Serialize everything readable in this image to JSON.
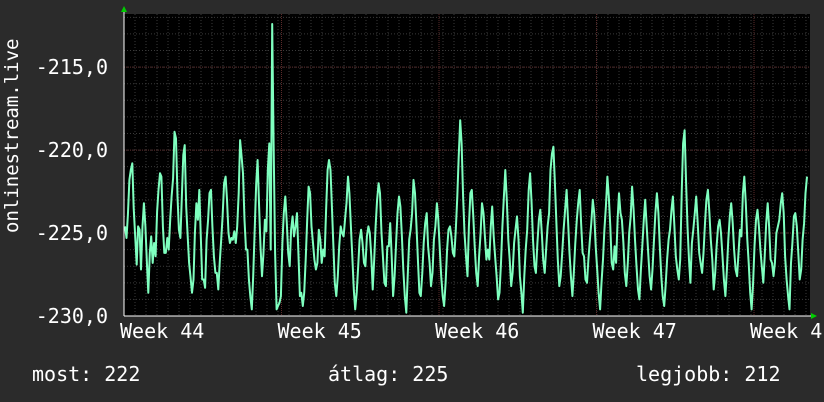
{
  "chart_data": {
    "type": "line",
    "ylabel": "onlinestream.live",
    "ylim": [
      -230,
      -211.8
    ],
    "yticks": [
      -215,
      -220,
      -225,
      -230
    ],
    "ytick_labels": [
      "-215,0",
      "-220,0",
      "-225,0",
      "-230,0"
    ],
    "xticks": [
      "Week 44",
      "Week 45",
      "Week 46",
      "Week 47",
      "Week 4"
    ],
    "grid": true,
    "colors": {
      "background": "#000000",
      "line": "#7fffbf",
      "grid_major": "#5a2a2a",
      "grid_minor": "#3a3a3a",
      "axis": "#ffffff",
      "arrow": "#00cc00"
    },
    "series": [
      {
        "values": [
          -224.6,
          -225.3,
          -223.9,
          -221.8,
          -221.2,
          -220.8,
          -223.5,
          -225.2,
          -226.9,
          -224.6,
          -224.8,
          -227.2,
          -224.6,
          -223.2,
          -224.6,
          -226.8,
          -228.6,
          -226.2,
          -225.2,
          -226.8,
          -225.6,
          -226.4,
          -223.7,
          -222.4,
          -221.4,
          -221.6,
          -224.6,
          -226.2,
          -226.2,
          -225.3,
          -226.0,
          -224.2,
          -222.8,
          -221.7,
          -218.9,
          -219.3,
          -222.8,
          -224.8,
          -225.3,
          -222.9,
          -220.3,
          -219.7,
          -223.4,
          -225.2,
          -226.8,
          -227.7,
          -228.6,
          -227.8,
          -225.0,
          -223.2,
          -224.2,
          -222.4,
          -225.2,
          -227.8,
          -227.8,
          -228.3,
          -225.4,
          -224.2,
          -222.6,
          -222.4,
          -224.6,
          -226.4,
          -227.4,
          -227.4,
          -228.4,
          -226.8,
          -225.4,
          -224.0,
          -222.0,
          -221.6,
          -223.0,
          -225.0,
          -225.6,
          -225.3,
          -225.4,
          -224.9,
          -225.6,
          -224.6,
          -222.6,
          -219.4,
          -220.4,
          -221.4,
          -224.2,
          -226.0,
          -226.0,
          -227.8,
          -228.8,
          -229.6,
          -227.6,
          -224.8,
          -222.0,
          -220.6,
          -223.4,
          -225.8,
          -227.6,
          -226.3,
          -224.2,
          -224.9,
          -221.2,
          -219.6,
          -226.0,
          -212.4,
          -219.6,
          -226.2,
          -229.6,
          -229.4,
          -229.2,
          -228.8,
          -225.6,
          -223.8,
          -222.8,
          -224.4,
          -226.2,
          -227.0,
          -224.8,
          -224.0,
          -225.2,
          -224.6,
          -223.8,
          -226.2,
          -228.8,
          -228.6,
          -229.4,
          -228.6,
          -226.6,
          -224.2,
          -222.2,
          -222.6,
          -224.6,
          -225.6,
          -226.6,
          -227.2,
          -226.8,
          -224.8,
          -225.4,
          -226.8,
          -226.0,
          -226.4,
          -223.6,
          -221.2,
          -220.6,
          -221.2,
          -223.4,
          -225.8,
          -228.0,
          -228.8,
          -227.6,
          -225.8,
          -224.6,
          -225.0,
          -225.2,
          -224.2,
          -223.2,
          -221.6,
          -222.6,
          -224.6,
          -226.4,
          -228.4,
          -229.6,
          -228.6,
          -227.0,
          -225.4,
          -224.8,
          -225.6,
          -226.8,
          -227.0,
          -225.2,
          -224.6,
          -225.0,
          -226.4,
          -228.4,
          -226.6,
          -224.6,
          -223.0,
          -222.0,
          -222.6,
          -225.0,
          -226.4,
          -228.0,
          -228.2,
          -225.8,
          -225.8,
          -224.4,
          -226.4,
          -228.8,
          -227.6,
          -225.6,
          -223.8,
          -222.8,
          -223.4,
          -225.2,
          -227.2,
          -228.8,
          -229.8,
          -227.6,
          -225.4,
          -224.8,
          -223.8,
          -221.8,
          -222.6,
          -224.6,
          -226.6,
          -228.6,
          -228.8,
          -227.4,
          -225.6,
          -224.4,
          -223.8,
          -225.8,
          -226.8,
          -228.2,
          -227.4,
          -225.4,
          -224.6,
          -223.2,
          -224.2,
          -226.0,
          -227.6,
          -228.8,
          -229.4,
          -228.0,
          -226.0,
          -224.8,
          -224.6,
          -225.2,
          -226.2,
          -226.4,
          -224.8,
          -222.8,
          -220.4,
          -218.2,
          -219.6,
          -222.8,
          -225.0,
          -226.4,
          -227.6,
          -224.6,
          -222.6,
          -222.4,
          -224.0,
          -225.8,
          -227.4,
          -228.2,
          -226.4,
          -225.0,
          -223.2,
          -223.8,
          -225.2,
          -226.6,
          -226.0,
          -226.6,
          -224.6,
          -223.4,
          -225.2,
          -226.4,
          -227.6,
          -229.0,
          -228.6,
          -226.8,
          -224.6,
          -222.8,
          -221.2,
          -223.0,
          -225.4,
          -226.6,
          -228.2,
          -227.4,
          -225.6,
          -224.8,
          -224.0,
          -225.4,
          -227.6,
          -228.6,
          -229.8,
          -227.6,
          -226.0,
          -224.8,
          -222.4,
          -221.4,
          -223.2,
          -225.4,
          -227.0,
          -227.4,
          -225.6,
          -224.2,
          -223.6,
          -225.0,
          -226.6,
          -227.4,
          -226.0,
          -224.6,
          -223.8,
          -221.2,
          -220.2,
          -219.8,
          -222.0,
          -224.4,
          -226.6,
          -228.2,
          -227.6,
          -226.2,
          -224.8,
          -223.6,
          -222.4,
          -224.2,
          -226.2,
          -227.6,
          -228.8,
          -227.4,
          -225.6,
          -224.2,
          -223.2,
          -222.4,
          -224.4,
          -226.2,
          -226.4,
          -227.8,
          -228.0,
          -226.6,
          -225.4,
          -224.4,
          -223.0,
          -223.8,
          -225.8,
          -227.2,
          -228.6,
          -229.6,
          -228.0,
          -226.6,
          -224.8,
          -223.4,
          -221.6,
          -222.8,
          -224.6,
          -226.8,
          -227.2,
          -225.8,
          -226.8,
          -224.2,
          -222.6,
          -223.8,
          -224.2,
          -225.6,
          -227.4,
          -228.2,
          -226.8,
          -225.0,
          -224.0,
          -222.2,
          -223.6,
          -225.4,
          -227.0,
          -228.4,
          -229.0,
          -227.2,
          -225.8,
          -224.2,
          -223.0,
          -224.6,
          -226.2,
          -227.6,
          -228.4,
          -227.2,
          -225.4,
          -223.8,
          -222.6,
          -223.8,
          -225.8,
          -227.6,
          -228.8,
          -229.4,
          -228.2,
          -226.6,
          -225.4,
          -224.8,
          -223.6,
          -222.8,
          -224.6,
          -226.4,
          -227.2,
          -227.8,
          -226.6,
          -222.6,
          -219.6,
          -218.8,
          -221.8,
          -224.6,
          -226.6,
          -228.0,
          -225.6,
          -224.8,
          -223.8,
          -222.8,
          -224.4,
          -226.2,
          -226.8,
          -227.4,
          -226.2,
          -224.4,
          -223.0,
          -222.4,
          -223.8,
          -225.4,
          -226.6,
          -228.4,
          -227.4,
          -225.8,
          -224.6,
          -224.2,
          -225.0,
          -226.4,
          -227.8,
          -228.8,
          -227.2,
          -225.4,
          -224.0,
          -223.2,
          -224.4,
          -226.0,
          -227.2,
          -227.6,
          -226.2,
          -224.8,
          -225.2,
          -222.6,
          -221.6,
          -223.2,
          -225.4,
          -226.8,
          -228.6,
          -229.6,
          -228.0,
          -225.8,
          -224.2,
          -223.6,
          -224.6,
          -226.0,
          -227.0,
          -228.0,
          -226.4,
          -224.4,
          -223.2,
          -224.6,
          -226.6,
          -226.8,
          -227.6,
          -226.8,
          -225.0,
          -224.6,
          -224.2,
          -223.2,
          -222.6,
          -223.8,
          -226.4,
          -227.8,
          -228.8,
          -229.6,
          -226.8,
          -225.6,
          -224.0,
          -223.8,
          -224.6,
          -226.2,
          -227.8,
          -227.2,
          -225.4,
          -224.4,
          -222.6,
          -221.6
        ]
      }
    ]
  },
  "stats": {
    "now": "most: 222",
    "avg": "átlag: 225",
    "best": "legjobb: 212"
  }
}
